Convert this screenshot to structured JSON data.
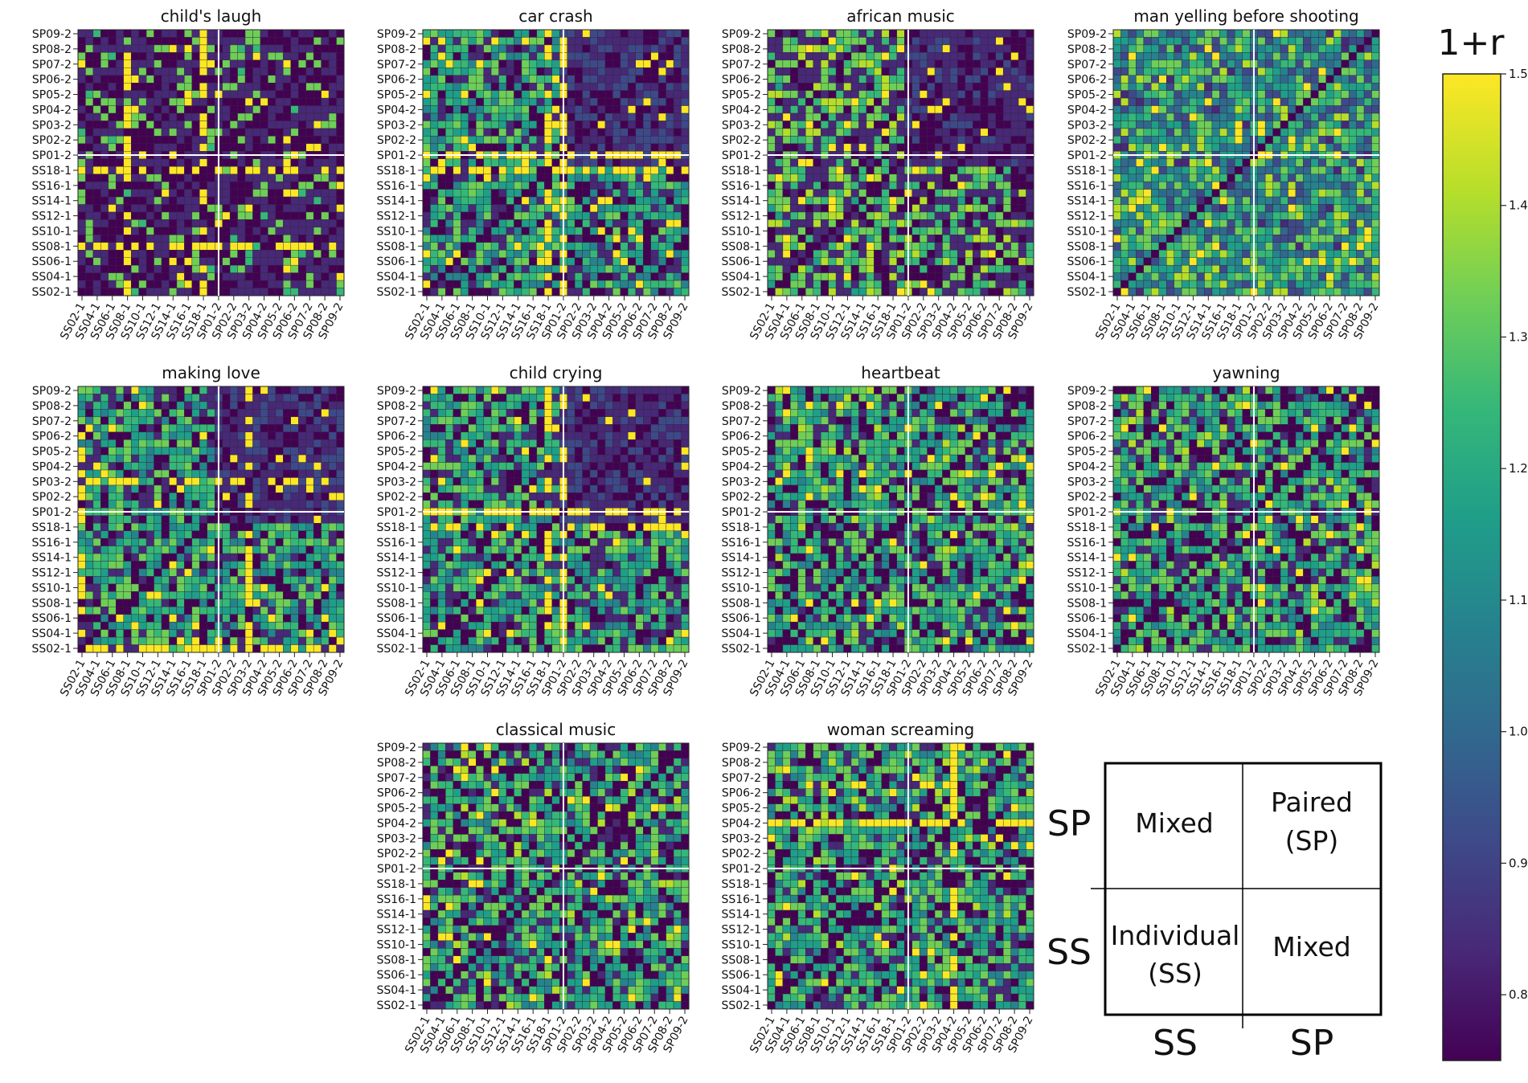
{
  "figure": {
    "row_labels_top_to_bottom": [
      "SP09-2",
      "SP08-2",
      "SP07-2",
      "SP06-2",
      "SP05-2",
      "SP04-2",
      "SP03-2",
      "SP02-2",
      "SP01-2",
      "SS18-1",
      "SS16-1",
      "SS14-1",
      "SS12-1",
      "SS10-1",
      "SS08-1",
      "SS06-1",
      "SS04-1",
      "SS02-1"
    ],
    "col_labels_left_to_right": [
      "SS02-1",
      "SS04-1",
      "SS06-1",
      "SS08-1",
      "SS10-1",
      "SS12-1",
      "SS14-1",
      "SS16-1",
      "SS18-1",
      "SP01-2",
      "SP02-2",
      "SP03-2",
      "SP04-2",
      "SP05-2",
      "SP06-2",
      "SP07-2",
      "SP08-2",
      "SP09-2"
    ]
  },
  "chart_data": [
    {
      "type": "heatmap",
      "title": "child's laugh",
      "grid_cells": [
        35,
        35
      ],
      "divider": "SS | SP",
      "yellow_lines": [
        "SS08-1",
        "SS18-1"
      ],
      "pattern": "sparse"
    },
    {
      "type": "heatmap",
      "title": "car crash",
      "grid_cells": [
        35,
        35
      ],
      "divider": "SS | SP",
      "yellow_lines": [
        "SS18-1",
        "SP01-2"
      ],
      "pattern": "blocky"
    },
    {
      "type": "heatmap",
      "title": "african music",
      "grid_cells": [
        35,
        35
      ],
      "divider": "SS | SP",
      "yellow_lines": [],
      "pattern": "blocky-dark"
    },
    {
      "type": "heatmap",
      "title": "man yelling before shooting",
      "grid_cells": [
        35,
        35
      ],
      "divider": "SS | SP",
      "yellow_lines": [],
      "pattern": "mixed-bright"
    },
    {
      "type": "heatmap",
      "title": "making love",
      "grid_cells": [
        35,
        35
      ],
      "divider": "SS | SP",
      "yellow_lines": [
        "SS02-1",
        "SP03-2"
      ],
      "pattern": "blocky"
    },
    {
      "type": "heatmap",
      "title": "child crying",
      "grid_cells": [
        35,
        35
      ],
      "divider": "SS | SP",
      "yellow_lines": [
        "SS18-1",
        "SP01-2"
      ],
      "pattern": "blocky"
    },
    {
      "type": "heatmap",
      "title": "heartbeat",
      "grid_cells": [
        35,
        35
      ],
      "divider": "SS | SP",
      "yellow_lines": [],
      "pattern": "mixed"
    },
    {
      "type": "heatmap",
      "title": "yawning",
      "grid_cells": [
        35,
        35
      ],
      "divider": "SS | SP",
      "yellow_lines": [],
      "pattern": "mixed"
    },
    {
      "type": "heatmap",
      "title": "classical music",
      "grid_cells": [
        35,
        35
      ],
      "divider": "SS | SP",
      "yellow_lines": [],
      "pattern": "mixed"
    },
    {
      "type": "heatmap",
      "title": "woman screaming",
      "grid_cells": [
        35,
        35
      ],
      "divider": "SS | SP",
      "yellow_lines": [
        "SP04-2"
      ],
      "pattern": "mixed"
    }
  ],
  "colorbar": {
    "label": "1+r",
    "range": [
      0.75,
      1.5
    ],
    "ticks": [
      "1.5",
      "1.4",
      "1.3",
      "1.2",
      "1.1",
      "1.0",
      "0.9",
      "0.8"
    ],
    "colormap_stops": [
      "#440154",
      "#482878",
      "#3e4989",
      "#31688e",
      "#26828e",
      "#1f9e89",
      "#35b779",
      "#6ece58",
      "#b5de2b",
      "#fde725"
    ]
  },
  "legend": {
    "cells": {
      "top_left": "Mixed",
      "top_right_line1": "Paired",
      "top_right_line2": "(SP)",
      "bottom_left_line1": "Individual",
      "bottom_left_line2": "(SS)",
      "bottom_right": "Mixed"
    },
    "row_labels": [
      "SP",
      "SS"
    ],
    "col_labels": [
      "SS",
      "SP"
    ]
  }
}
